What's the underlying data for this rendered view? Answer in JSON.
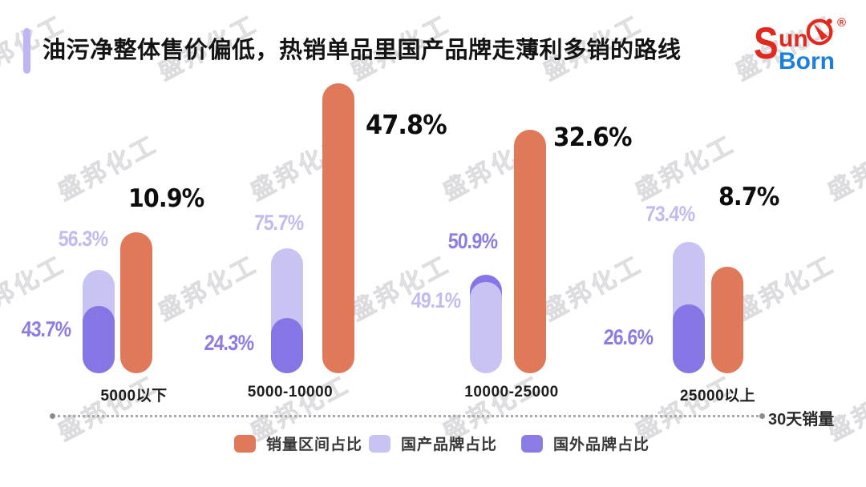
{
  "header": {
    "title": "油污净整体售价偏低，热销单品里国产品牌走薄利多销的路线",
    "accent_color": "#bdb6f2"
  },
  "logo": {
    "s": "S",
    "un": "un",
    "born": "Born",
    "registered": "®",
    "red": "#e02a1f",
    "blue": "#1c7fdd"
  },
  "watermark": {
    "text": "盛邦化工"
  },
  "colors": {
    "orange": "#e0785a",
    "purple_light": "#c7c3f2",
    "purple_dark": "#8476e4",
    "label_light": "#c1bcef",
    "label_dark": "#8b7ee0"
  },
  "chart_data": {
    "type": "bar",
    "title": "油污净整体售价偏低，热销单品里国产品牌走薄利多销的路线",
    "categories": [
      "5000以下",
      "5000-10000",
      "10000-25000",
      "25000以上"
    ],
    "series": [
      {
        "name": "销量区间占比",
        "color": "#e0785a",
        "values": [
          10.9,
          47.8,
          32.6,
          8.7
        ]
      },
      {
        "name": "国产品牌占比",
        "color": "#c7c3f2",
        "values": [
          56.3,
          75.7,
          49.1,
          73.4
        ]
      },
      {
        "name": "国外品牌占比",
        "color": "#8476e4",
        "values": [
          43.7,
          24.3,
          50.9,
          26.6
        ]
      }
    ],
    "value_suffix": "%",
    "xlabel": "30天销量",
    "legend_position": "bottom",
    "grid": false,
    "groups": [
      {
        "category": "5000以下",
        "orange_label": "10.9%",
        "light_label": "56.3%",
        "dark_label": "43.7%"
      },
      {
        "category": "5000-10000",
        "orange_label": "47.8%",
        "light_label": "75.7%",
        "dark_label": "24.3%"
      },
      {
        "category": "10000-25000",
        "orange_label": "32.6%",
        "light_label": "49.1%",
        "dark_label": "50.9%"
      },
      {
        "category": "25000以上",
        "orange_label": "8.7%",
        "light_label": "73.4%",
        "dark_label": "26.6%"
      }
    ]
  },
  "axis": {
    "label": "30天销量"
  },
  "legend": {
    "items": [
      {
        "label": "销量区间占比",
        "color": "#e0785a"
      },
      {
        "label": "国产品牌占比",
        "color": "#c7c3f2"
      },
      {
        "label": "国外品牌占比",
        "color": "#8a7ce5"
      }
    ]
  }
}
